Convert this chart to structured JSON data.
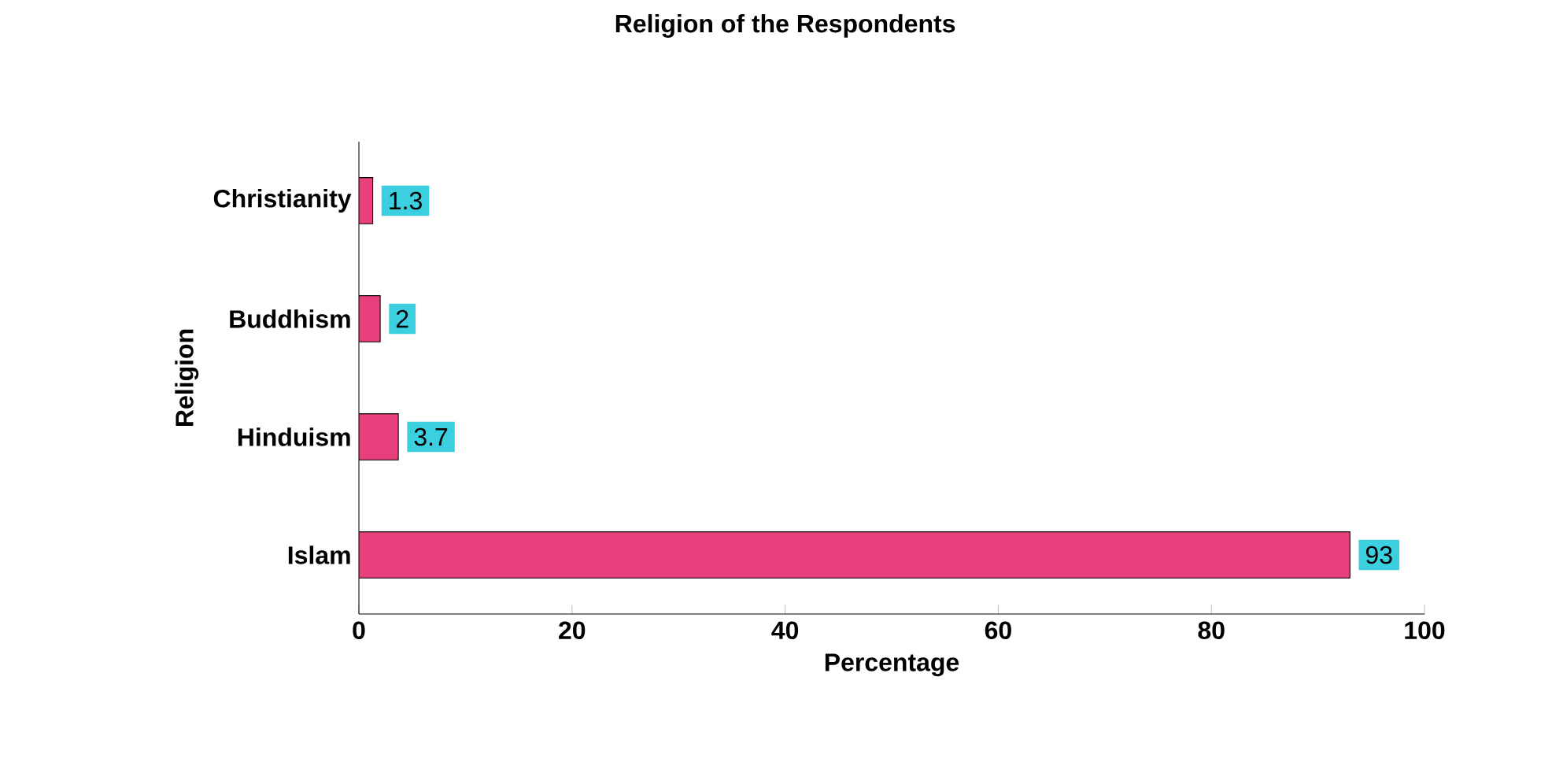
{
  "chart_data": {
    "type": "bar",
    "orientation": "horizontal",
    "title": "Religion of the Respondents",
    "xlabel": "Percentage",
    "ylabel": "Religion",
    "categories": [
      "Christianity",
      "Buddhism",
      "Hinduism",
      "Islam"
    ],
    "values": [
      1.3,
      2,
      3.7,
      93
    ],
    "color": "#e8407c",
    "data_labels": true,
    "xlim": [
      0,
      100
    ],
    "xticks": [
      0,
      20,
      40,
      60,
      80,
      100
    ]
  }
}
